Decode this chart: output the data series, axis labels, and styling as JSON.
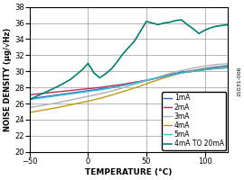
{
  "title": "",
  "xlabel": "TEMPERATURE (°C)",
  "ylabel": "NOISE DENSITY (μg/√Hz)",
  "xlim": [
    -50,
    120
  ],
  "ylim": [
    20,
    38
  ],
  "xticks": [
    -50,
    0,
    50,
    100
  ],
  "yticks": [
    20,
    22,
    24,
    26,
    28,
    30,
    32,
    34,
    36,
    38
  ],
  "grid": true,
  "background_color": "#ffffff",
  "series": [
    {
      "label": "1mA",
      "color": "#3060c0",
      "linewidth": 1.0,
      "x": [
        -50,
        -40,
        -30,
        -20,
        -10,
        0,
        10,
        20,
        30,
        40,
        50,
        60,
        70,
        80,
        90,
        100,
        110,
        120
      ],
      "y": [
        26.6,
        26.8,
        27.0,
        27.2,
        27.4,
        27.6,
        27.8,
        28.0,
        28.25,
        28.55,
        28.85,
        29.2,
        29.6,
        29.9,
        30.1,
        30.35,
        30.55,
        30.7
      ]
    },
    {
      "label": "2mA",
      "color": "#b03060",
      "linewidth": 1.0,
      "x": [
        -50,
        -40,
        -30,
        -20,
        -10,
        0,
        10,
        20,
        30,
        40,
        50,
        60,
        70,
        80,
        90,
        100,
        110,
        120
      ],
      "y": [
        27.1,
        27.25,
        27.4,
        27.55,
        27.7,
        27.85,
        28.0,
        28.2,
        28.4,
        28.65,
        28.9,
        29.2,
        29.5,
        29.8,
        30.0,
        30.2,
        30.35,
        30.45
      ]
    },
    {
      "label": "3mA",
      "color": "#b0b0b0",
      "linewidth": 1.0,
      "x": [
        -50,
        -40,
        -30,
        -20,
        -10,
        0,
        10,
        20,
        30,
        40,
        50,
        60,
        70,
        80,
        90,
        100,
        110,
        120
      ],
      "y": [
        25.5,
        25.75,
        26.0,
        26.3,
        26.6,
        26.9,
        27.2,
        27.55,
        27.95,
        28.4,
        28.85,
        29.3,
        29.75,
        30.1,
        30.4,
        30.65,
        30.85,
        30.95
      ]
    },
    {
      "label": "4mA",
      "color": "#c09818",
      "linewidth": 1.0,
      "x": [
        -50,
        -40,
        -30,
        -20,
        -10,
        0,
        10,
        20,
        30,
        40,
        50,
        60,
        70,
        80,
        90,
        100,
        110,
        120
      ],
      "y": [
        24.9,
        25.15,
        25.4,
        25.7,
        26.0,
        26.3,
        26.65,
        27.05,
        27.5,
        27.95,
        28.45,
        28.95,
        29.4,
        29.8,
        30.05,
        30.25,
        30.4,
        30.5
      ]
    },
    {
      "label": "5mA",
      "color": "#30c0d8",
      "linewidth": 1.0,
      "x": [
        -50,
        -40,
        -30,
        -20,
        -10,
        0,
        10,
        20,
        30,
        40,
        50,
        60,
        70,
        80,
        90,
        100,
        110,
        120
      ],
      "y": [
        26.5,
        26.7,
        26.9,
        27.1,
        27.3,
        27.5,
        27.7,
        27.95,
        28.25,
        28.55,
        28.9,
        29.2,
        29.5,
        29.8,
        30.0,
        30.2,
        30.35,
        30.45
      ]
    },
    {
      "label": "4mA TO 20mA",
      "color": "#008070",
      "linewidth": 1.2,
      "x": [
        -50,
        -43,
        -35,
        -25,
        -15,
        -5,
        0,
        5,
        10,
        15,
        20,
        25,
        30,
        35,
        40,
        45,
        50,
        55,
        60,
        65,
        70,
        75,
        80,
        85,
        90,
        95,
        100,
        105,
        110,
        115,
        120
      ],
      "y": [
        26.5,
        27.0,
        27.5,
        28.2,
        29.0,
        30.2,
        31.0,
        29.8,
        29.2,
        29.7,
        30.3,
        31.2,
        32.2,
        33.0,
        33.8,
        35.0,
        36.2,
        36.0,
        35.8,
        36.0,
        36.1,
        36.3,
        36.4,
        35.8,
        35.3,
        34.7,
        35.1,
        35.4,
        35.6,
        35.7,
        35.8
      ]
    }
  ],
  "legend_fontsize": 5.5,
  "xlabel_fontsize": 6.5,
  "ylabel_fontsize": 6.0,
  "tick_fontsize": 6.0,
  "right_label": "21031-006"
}
